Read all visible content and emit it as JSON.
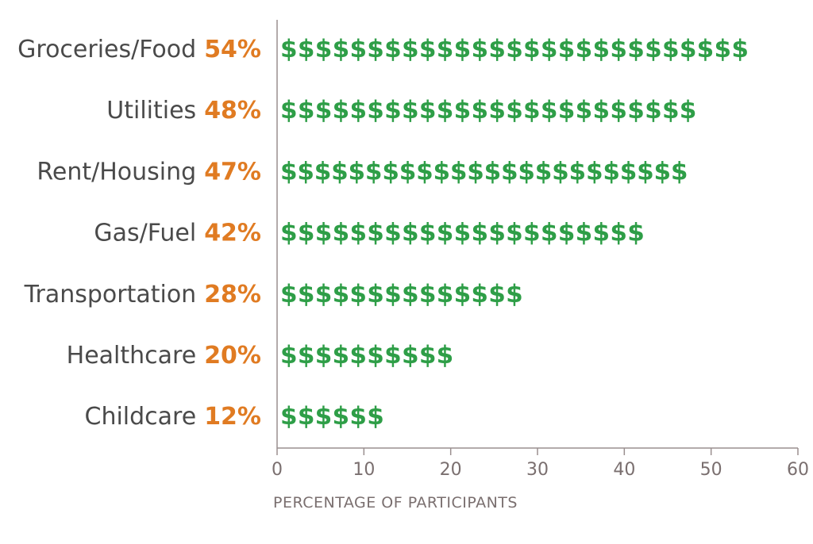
{
  "chart_data": {
    "type": "bar",
    "orientation": "horizontal",
    "categories": [
      "Groceries/Food",
      "Utilities",
      "Rent/Housing",
      "Gas/Fuel",
      "Transportation",
      "Healthcare",
      "Childcare"
    ],
    "values": [
      54,
      48,
      47,
      42,
      28,
      20,
      12
    ],
    "value_labels": [
      "54%",
      "48%",
      "47%",
      "42%",
      "28%",
      "20%",
      "12%"
    ],
    "mark_glyph": "$",
    "units_per_mark": 2,
    "xlabel": "PERCENTAGE OF PARTICIPANTS",
    "xlim": [
      0,
      60
    ],
    "xticks": [
      0,
      10,
      20,
      30,
      40,
      50,
      60
    ],
    "grid": false,
    "colors": {
      "mark": "#2e9e47",
      "value_label": "#e07b22",
      "category_label": "#4a4a4a",
      "axis": "#9a8f8f",
      "tick_label": "#7a6f6f"
    }
  }
}
